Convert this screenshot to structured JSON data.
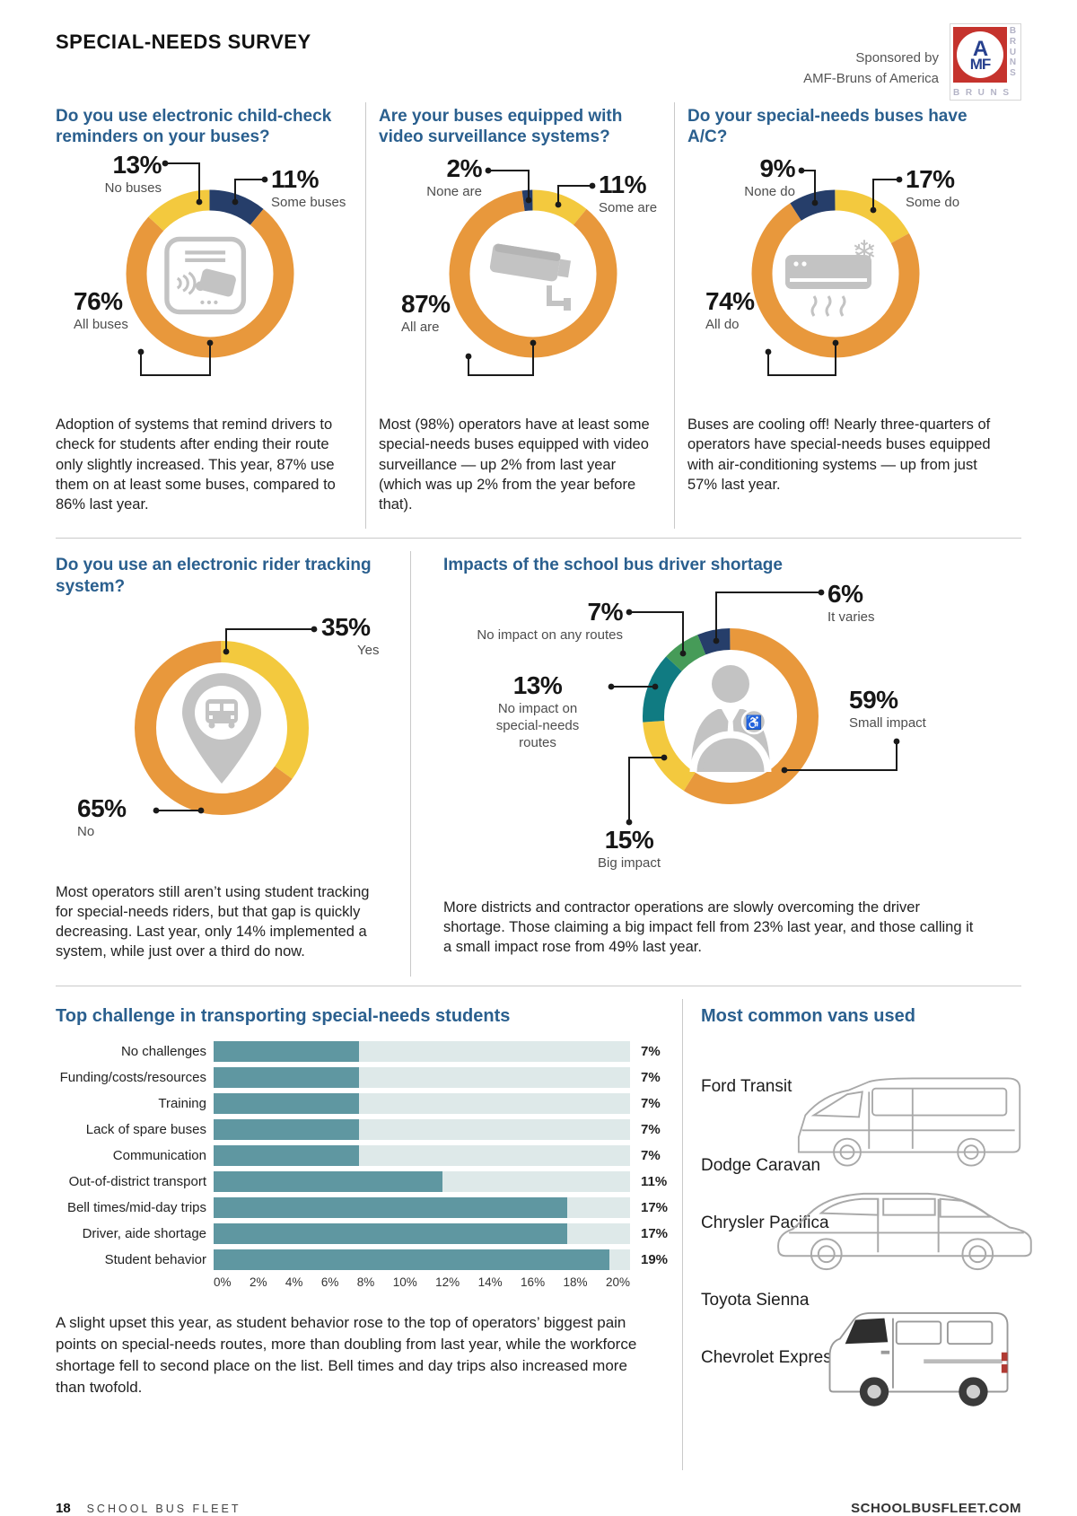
{
  "page": {
    "title": "SPECIAL-NEEDS SURVEY",
    "sponsor_line1": "Sponsored by",
    "sponsor_line2": "AMF-Bruns of America",
    "logo": {
      "a": "A",
      "mf": "MF",
      "b1": "B",
      "b2": "R",
      "b3": "U",
      "b4": "N",
      "b5": "S"
    },
    "footer_page": "18",
    "footer_brand": "SCHOOL BUS FLEET",
    "footer_site": "SCHOOLBUSFLEET.COM"
  },
  "colors": {
    "heading_blue": "#2A5F8E",
    "navy": "#263E6A",
    "orange": "#E8983C",
    "yellow": "#F3C93E",
    "teal": "#107B82",
    "green": "#469B58",
    "bar_fill": "#5F97A1",
    "bar_track": "#DEE9E9",
    "icon_gray": "#C3C3C3"
  },
  "chart_data": [
    {
      "type": "donut",
      "title": "Do you use electronic child-check reminders on your buses?",
      "center_icon": "child-check-reader",
      "segments": [
        {
          "label": "Some buses",
          "pct": "11%",
          "value": 11,
          "color": "#263E6A"
        },
        {
          "label": "All buses",
          "pct": "76%",
          "value": 76,
          "color": "#E8983C"
        },
        {
          "label": "No buses",
          "pct": "13%",
          "value": 13,
          "color": "#F3C93E"
        }
      ],
      "note": "Adoption of systems that remind drivers to check for students after ending their route only slightly increased. This year, 87% use them on at least some buses, compared to 86% last year."
    },
    {
      "type": "donut",
      "title": "Are your buses equipped with video surveillance systems?",
      "center_icon": "security-camera",
      "segments": [
        {
          "label": "Some are",
          "pct": "11%",
          "value": 11,
          "color": "#F3C93E"
        },
        {
          "label": "All are",
          "pct": "87%",
          "value": 87,
          "color": "#E8983C"
        },
        {
          "label": "None are",
          "pct": "2%",
          "value": 2,
          "color": "#263E6A"
        }
      ],
      "note": "Most (98%) operators have at least some special-needs buses equipped with video surveillance — up 2% from last year (which was up 2% from the year before that)."
    },
    {
      "type": "donut",
      "title": "Do your special-needs buses have A/C?",
      "center_icon": "air-conditioner",
      "segments": [
        {
          "label": "Some do",
          "pct": "17%",
          "value": 17,
          "color": "#F3C93E"
        },
        {
          "label": "All do",
          "pct": "74%",
          "value": 74,
          "color": "#E8983C"
        },
        {
          "label": "None do",
          "pct": "9%",
          "value": 9,
          "color": "#263E6A"
        }
      ],
      "note": "Buses are cooling off! Nearly three-quarters of operators have special-needs buses equipped with air-conditioning systems — up from just 57% last year."
    },
    {
      "type": "donut",
      "title": "Do you use an electronic rider tracking system?",
      "center_icon": "bus-location-pin",
      "segments": [
        {
          "label": "Yes",
          "pct": "35%",
          "value": 35,
          "color": "#F3C93E"
        },
        {
          "label": "No",
          "pct": "65%",
          "value": 65,
          "color": "#E8983C"
        }
      ],
      "note": "Most operators still aren’t using student tracking for special-needs riders, but that gap is quickly decreasing. Last year, only 14% implemented a system, while just over a third do now."
    },
    {
      "type": "donut",
      "title": "Impacts of the school bus driver shortage",
      "center_icon": "bus-driver",
      "segments": [
        {
          "label": "Small impact",
          "pct": "59%",
          "value": 59,
          "color": "#E8983C"
        },
        {
          "label": "Big impact",
          "pct": "15%",
          "value": 15,
          "color": "#F3C93E"
        },
        {
          "label": "No impact on special-needs routes",
          "pct": "13%",
          "value": 13,
          "color": "#107B82",
          "lines": [
            "No impact on",
            "special-needs",
            "routes"
          ]
        },
        {
          "label": "No impact on any routes",
          "pct": "7%",
          "value": 7,
          "color": "#469B58"
        },
        {
          "label": "It varies",
          "pct": "6%",
          "value": 6,
          "color": "#263E6A"
        }
      ],
      "note": "More districts and contractor operations are slowly overcoming the driver shortage. Those claiming a big impact fell from 23% last year, and those calling it a small impact rose from 49% last year."
    },
    {
      "type": "bar",
      "title": "Top challenge in transporting special-needs students",
      "categories": [
        "No challenges",
        "Funding/costs/resources",
        "Training",
        "Lack of spare buses",
        "Communication",
        "Out-of-district transport",
        "Bell times/mid-day trips",
        "Driver, aide shortage",
        "Student behavior"
      ],
      "values": [
        7,
        7,
        7,
        7,
        7,
        11,
        17,
        17,
        19
      ],
      "value_labels": [
        "7%",
        "7%",
        "7%",
        "7%",
        "7%",
        "11%",
        "17%",
        "17%",
        "19%"
      ],
      "ticks": [
        "0%",
        "2%",
        "4%",
        "6%",
        "8%",
        "10%",
        "12%",
        "14%",
        "16%",
        "18%",
        "20%"
      ],
      "xlim": [
        0,
        20
      ],
      "bar_color": "#5F97A1",
      "track_color": "#DEE9E9",
      "note": "A slight upset this year, as student behavior rose to the top of operators’ biggest pain points on special-needs routes, more than doubling from last year, while the workforce shortage fell to second place on the list. Bell times and day trips also increased more than twofold."
    }
  ],
  "vans": {
    "title": "Most common vans used",
    "items": [
      "Ford Transit",
      "Dodge Caravan",
      "Chrysler Pacifica",
      "Toyota Sienna",
      "Chevrolet Express"
    ]
  }
}
